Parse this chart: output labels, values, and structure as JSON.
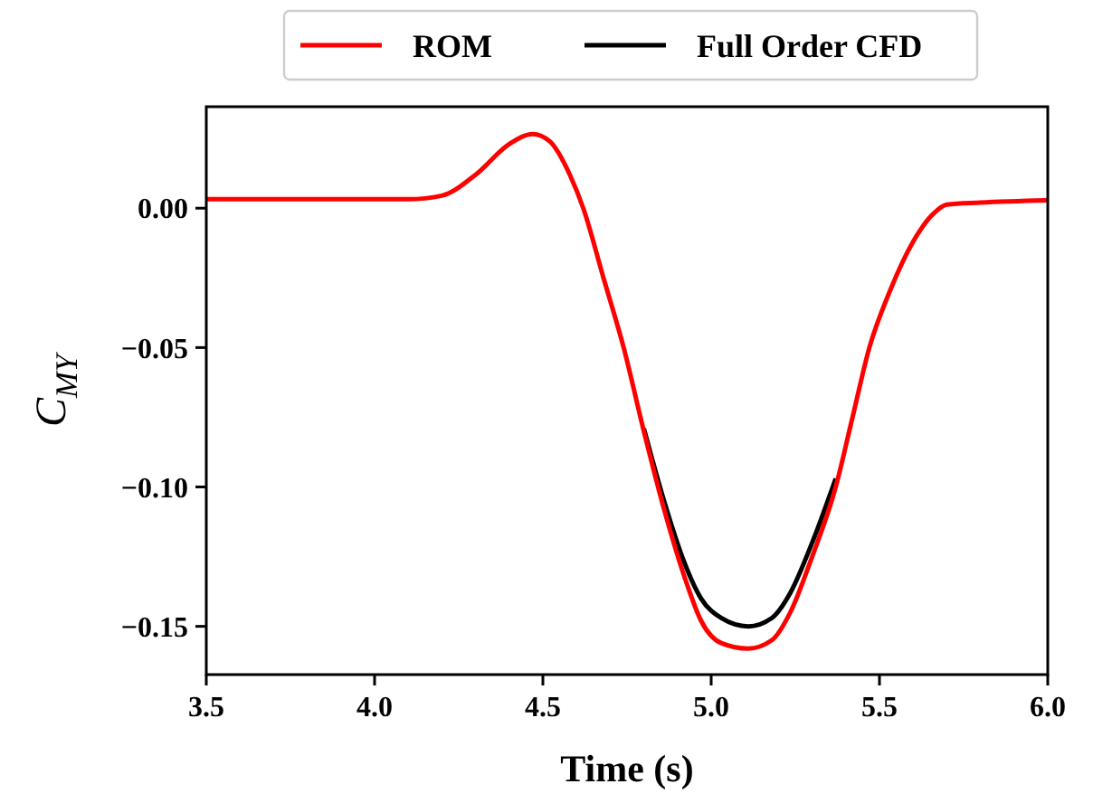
{
  "chart_data": {
    "type": "line",
    "xlabel": "Time (s)",
    "ylabel": "C$_{MY}$",
    "xlim": [
      3.5,
      6.0
    ],
    "ylim": [
      -0.1673,
      0.0364
    ],
    "xticks": [
      3.5,
      {
        "value": 4,
        "label": "4.0"
      },
      4.5,
      {
        "value": 5,
        "label": "5.0"
      },
      5.5,
      {
        "value": 6,
        "label": "6.0"
      }
    ],
    "yticks": [
      {
        "value": 0,
        "label": "0.00"
      },
      {
        "value": -0.05,
        "label": "−0.05"
      },
      {
        "value": -0.1,
        "label": "−0.10"
      },
      {
        "value": -0.15,
        "label": "−0.15"
      }
    ],
    "grid": false,
    "legend": "top",
    "line_style": "solid",
    "marker": "none",
    "series": [
      {
        "name": "ROM",
        "color": "#ff0000",
        "x": [
          3.5,
          4.1,
          4.2,
          4.3,
          4.4,
          4.47,
          4.52,
          4.58,
          4.62,
          4.68,
          4.74,
          4.8,
          4.86,
          4.92,
          4.97,
          5.03,
          5.11,
          5.18,
          5.235,
          5.3,
          5.37,
          5.42,
          5.47,
          5.53,
          5.6,
          5.66,
          5.7,
          5.8,
          6.0
        ],
        "values": [
          0.0032,
          0.0032,
          0.0045,
          0.012,
          0.023,
          0.0266,
          0.024,
          0.012,
          0.0,
          -0.025,
          -0.05,
          -0.08,
          -0.108,
          -0.132,
          -0.148,
          -0.156,
          -0.158,
          -0.155,
          -0.145,
          -0.125,
          -0.1,
          -0.075,
          -0.05,
          -0.03,
          -0.012,
          -0.002,
          0.0013,
          0.002,
          0.0028
        ]
      },
      {
        "name": "Full Order CFD",
        "color": "#000000",
        "x": [
          4.8,
          4.86,
          4.92,
          4.97,
          5.03,
          5.11,
          5.18,
          5.235,
          5.3,
          5.37
        ],
        "values": [
          -0.079,
          -0.105,
          -0.127,
          -0.14,
          -0.147,
          -0.15,
          -0.147,
          -0.138,
          -0.12,
          -0.097
        ]
      }
    ]
  }
}
